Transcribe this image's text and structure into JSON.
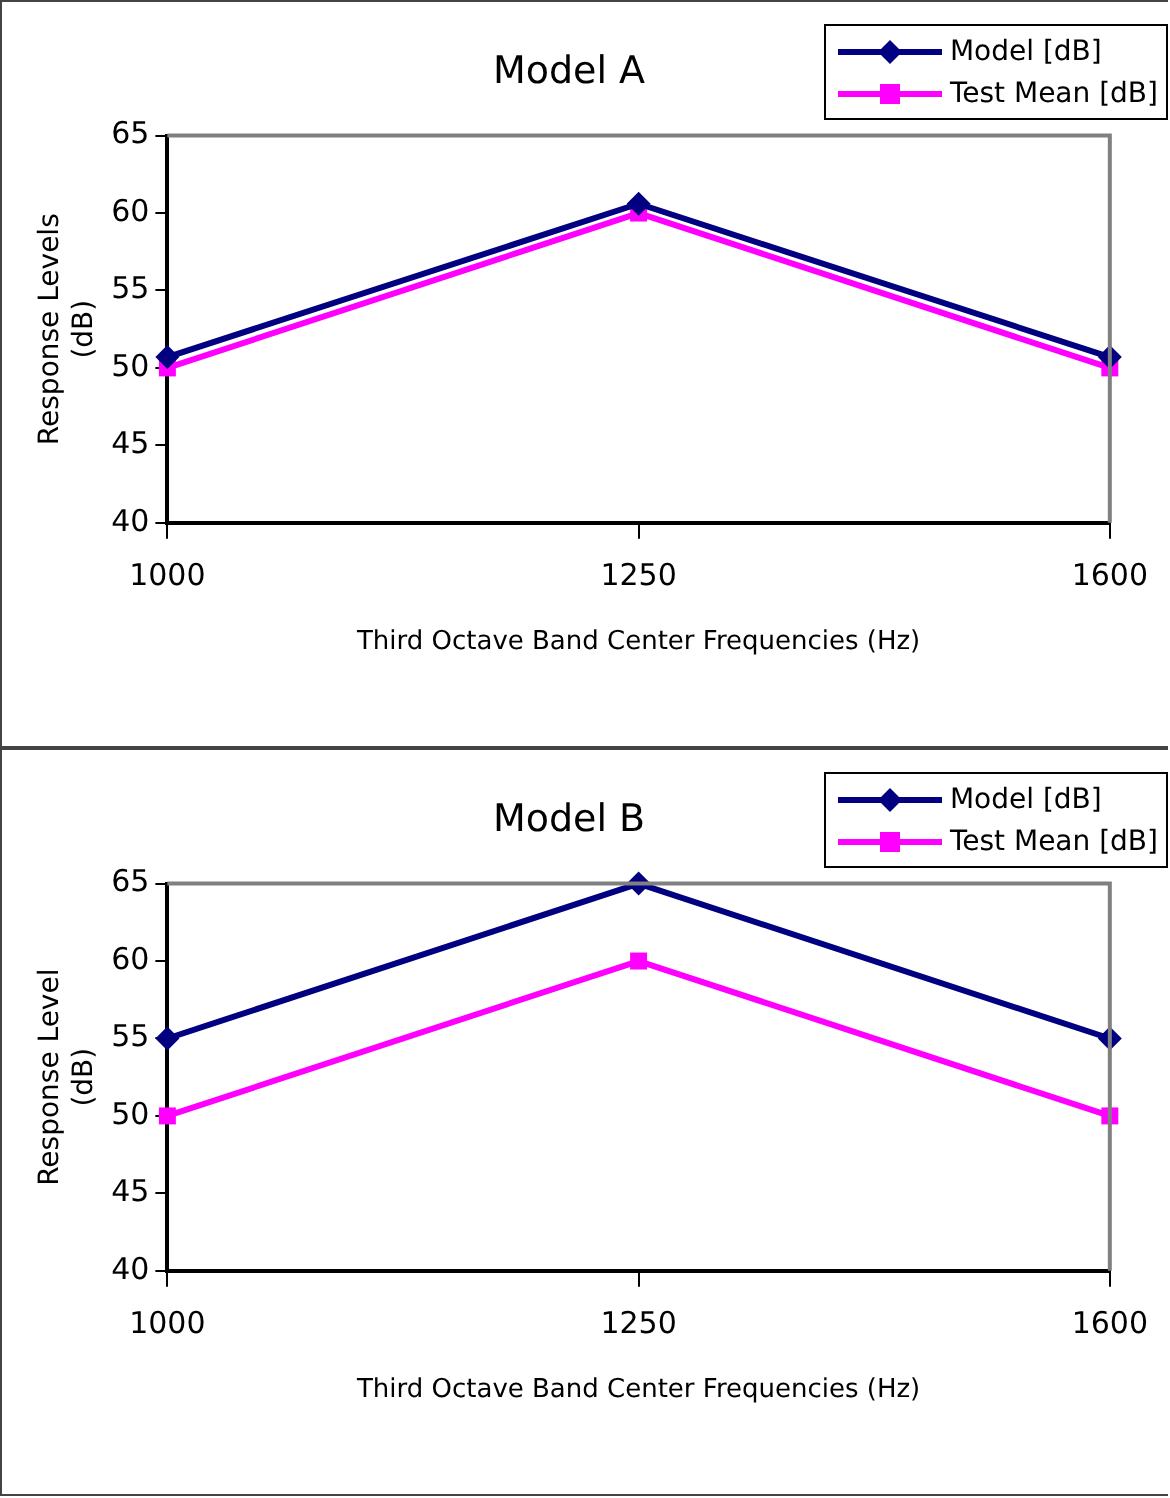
{
  "chart_data": [
    {
      "type": "line",
      "title": "Model A",
      "xlabel": "Third Octave Band Center Frequencies (Hz)",
      "ylabel": "Response Levels (dB)",
      "categories": [
        "1000",
        "1250",
        "1600"
      ],
      "series": [
        {
          "name": "Model [dB]",
          "color": "#000080",
          "marker": "diamond",
          "values": [
            50.7,
            60.6,
            50.7
          ]
        },
        {
          "name": "Test Mean [dB]",
          "color": "#ff00ff",
          "marker": "square",
          "values": [
            50,
            60,
            50
          ]
        }
      ],
      "ylim": [
        40,
        65
      ],
      "yticks": [
        40,
        45,
        50,
        55,
        60,
        65
      ],
      "grid": false,
      "legend": "top right",
      "line_style": "solid"
    },
    {
      "type": "line",
      "title": "Model B",
      "xlabel": "Third Octave Band Center Frequencies (Hz)",
      "ylabel": "Response Level (dB)",
      "categories": [
        "1000",
        "1250",
        "1600"
      ],
      "series": [
        {
          "name": "Model [dB]",
          "color": "#000080",
          "marker": "diamond",
          "values": [
            55,
            65,
            55
          ]
        },
        {
          "name": "Test Mean [dB]",
          "color": "#ff00ff",
          "marker": "square",
          "values": [
            50,
            60,
            50
          ]
        }
      ],
      "ylim": [
        40,
        65
      ],
      "yticks": [
        40,
        45,
        50,
        55,
        60,
        65
      ],
      "grid": false,
      "legend": "top right",
      "line_style": "solid"
    }
  ]
}
